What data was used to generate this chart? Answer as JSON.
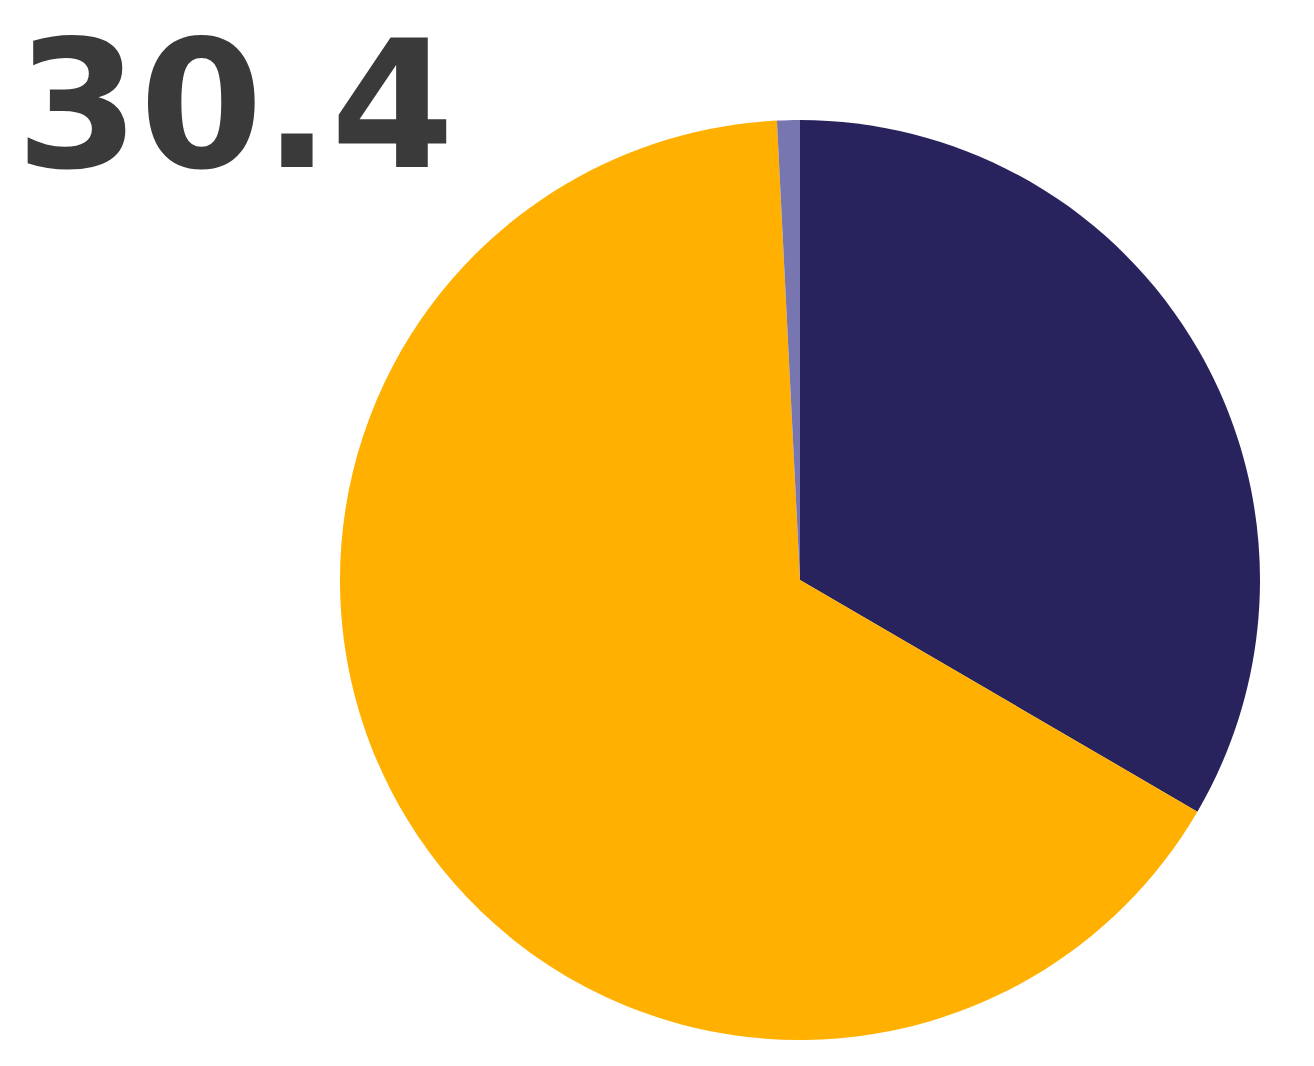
{
  "chart_data": {
    "type": "pie",
    "title": "30.4",
    "categories": [
      null,
      null,
      null
    ],
    "values": [
      33.4,
      65.8,
      0.8
    ],
    "colors": [
      "#28235c",
      "#ffb000",
      "#7876b0"
    ]
  }
}
